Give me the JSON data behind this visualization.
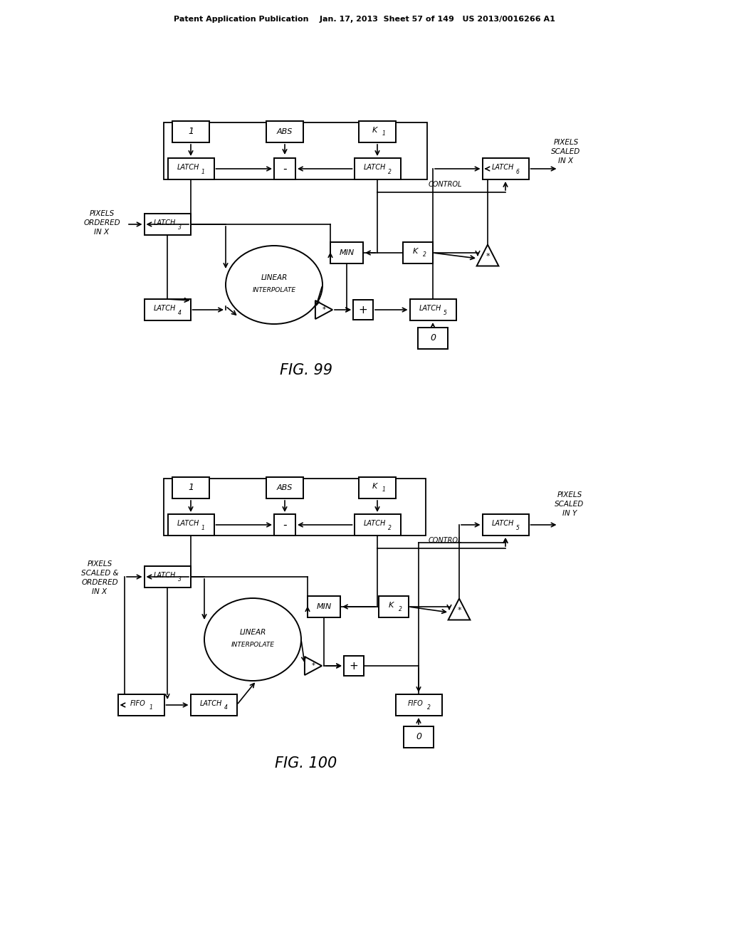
{
  "bg_color": "#ffffff",
  "header": "Patent Application Publication    Jan. 17, 2013  Sheet 57 of 149   US 2013/0016266 A1",
  "fig99_caption": "FIG. 99",
  "fig100_caption": "FIG. 100"
}
